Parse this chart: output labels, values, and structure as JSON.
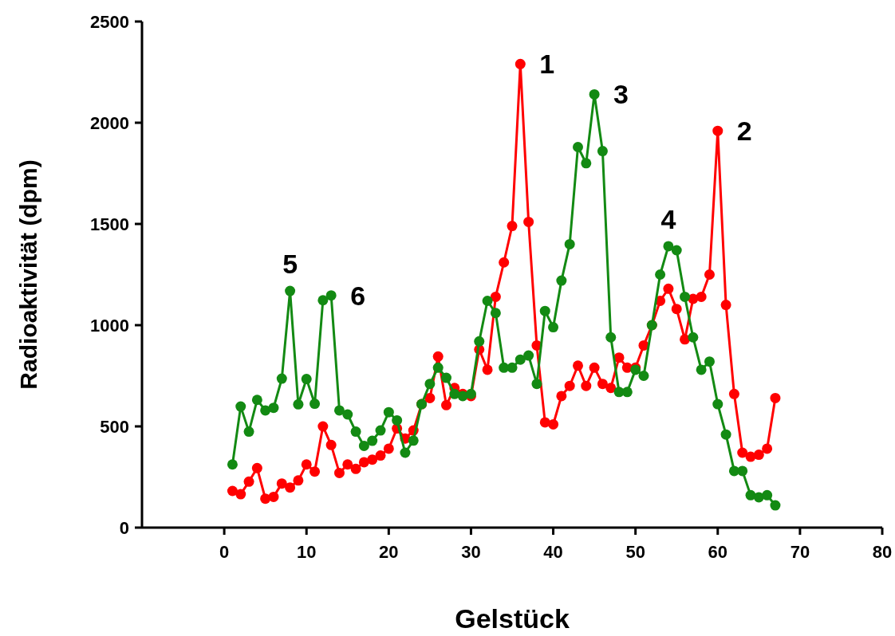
{
  "chart_data": {
    "type": "line",
    "xlabel": "Gelstück",
    "ylabel": "Radioaktivität (dpm)",
    "x": [
      1,
      2,
      3,
      4,
      5,
      6,
      7,
      8,
      9,
      10,
      11,
      12,
      13,
      14,
      15,
      16,
      17,
      18,
      19,
      20,
      21,
      22,
      23,
      24,
      25,
      26,
      27,
      28,
      29,
      30,
      31,
      32,
      33,
      34,
      35,
      36,
      37,
      38,
      39,
      40,
      41,
      42,
      43,
      44,
      45,
      46,
      47,
      48,
      49,
      50,
      51,
      52,
      53,
      54,
      55,
      56,
      57,
      58,
      59,
      60,
      61,
      62,
      63,
      64,
      65,
      66,
      67
    ],
    "series": [
      {
        "color": "#ff0000",
        "values": [
          181,
          165,
          227,
          294,
          143,
          152,
          218,
          198,
          233,
          312,
          277,
          500,
          408,
          270,
          312,
          290,
          323,
          336,
          356,
          390,
          490,
          440,
          480,
          610,
          640,
          845,
          605,
          690,
          660,
          650,
          880,
          780,
          1140,
          1310,
          1490,
          2290,
          1510,
          900,
          520,
          510,
          650,
          700,
          800,
          700,
          790,
          710,
          690,
          840,
          790,
          790,
          900,
          1000,
          1120,
          1180,
          1080,
          930,
          1130,
          1140,
          1250,
          1960,
          1100,
          660,
          370,
          350,
          360,
          390,
          640
        ]
      },
      {
        "color": "#138a13",
        "values": [
          312,
          598,
          474,
          631,
          579,
          592,
          736,
          1169,
          609,
          734,
          612,
          1123,
          1147,
          579,
          559,
          474,
          404,
          429,
          480,
          570,
          530,
          370,
          430,
          610,
          710,
          790,
          740,
          660,
          650,
          660,
          920,
          1120,
          1060,
          790,
          790,
          830,
          850,
          710,
          1070,
          990,
          1220,
          1400,
          1880,
          1800,
          2140,
          1860,
          940,
          670,
          670,
          780,
          750,
          1000,
          1250,
          1390,
          1370,
          1140,
          940,
          780,
          820,
          610,
          460,
          280,
          280,
          160,
          150,
          160,
          110
        ]
      }
    ],
    "xlim": [
      -10,
      80
    ],
    "xticks": [
      0,
      10,
      20,
      30,
      40,
      50,
      60,
      70,
      80
    ],
    "ylim": [
      0,
      2500
    ],
    "yticks": [
      0,
      500,
      1000,
      1500,
      2000,
      2500
    ],
    "marker": "circle",
    "grid": false,
    "annotations": [
      {
        "text": "1",
        "x": 36,
        "y": 2290
      },
      {
        "text": "2",
        "x": 60,
        "y": 1960
      },
      {
        "text": "3",
        "x": 45,
        "y": 2140
      },
      {
        "text": "4",
        "x": 54,
        "y": 1390
      },
      {
        "text": "5",
        "x": 8,
        "y": 1169
      },
      {
        "text": "6",
        "x": 13,
        "y": 1147
      }
    ]
  }
}
